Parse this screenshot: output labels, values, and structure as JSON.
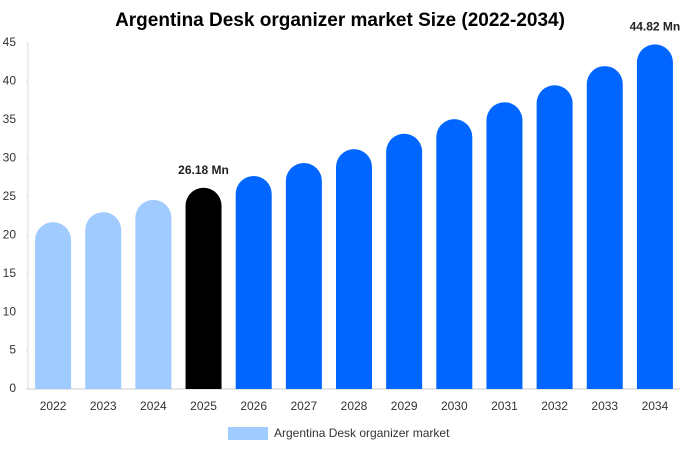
{
  "chart_data": {
    "type": "bar",
    "title": "Argentina Desk organizer market  Size (2022-2034)",
    "categories": [
      "2022",
      "2023",
      "2024",
      "2025",
      "2026",
      "2027",
      "2028",
      "2029",
      "2030",
      "2031",
      "2032",
      "2033",
      "2034"
    ],
    "series": [
      {
        "name": "Argentina Desk organizer market",
        "color": "#a0cbff",
        "values": [
          21.7,
          23.0,
          24.6,
          26.18,
          27.7,
          29.4,
          31.2,
          33.2,
          35.1,
          37.3,
          39.5,
          42.0,
          44.82
        ],
        "value_labels": [
          null,
          null,
          null,
          "26.18 Mn",
          null,
          null,
          null,
          null,
          null,
          null,
          null,
          null,
          "44.82 Mn"
        ],
        "colors": [
          "#a0cbff",
          "#a0cbff",
          "#a0cbff",
          "#000000",
          "#0066ff",
          "#0066ff",
          "#0066ff",
          "#0066ff",
          "#0066ff",
          "#0066ff",
          "#0066ff",
          "#0066ff",
          "#0066ff"
        ]
      }
    ],
    "ylim": [
      0,
      45
    ],
    "yticks": [
      0,
      5,
      10,
      15,
      20,
      25,
      30,
      35,
      40,
      45
    ],
    "grid": false,
    "legend": "bottom"
  }
}
